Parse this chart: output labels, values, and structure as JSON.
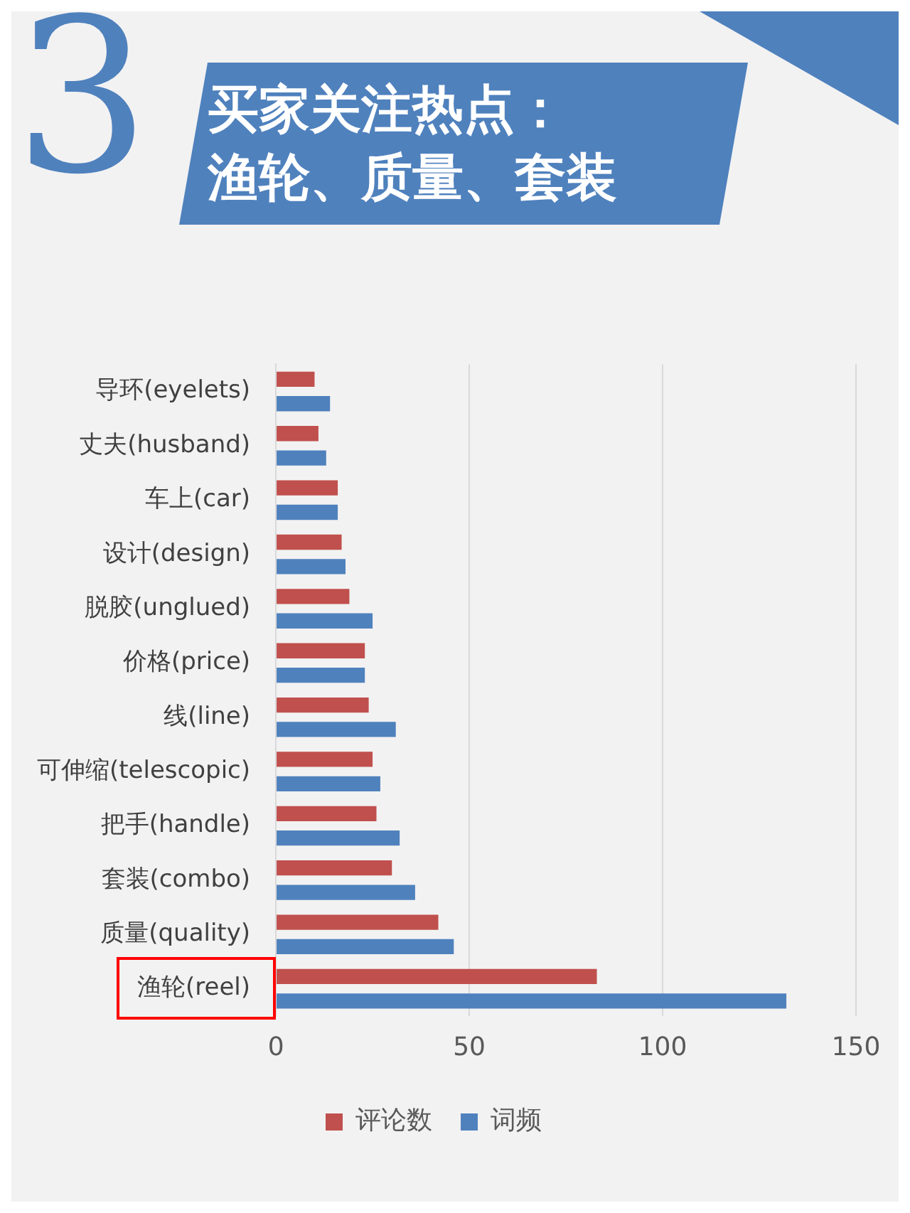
{
  "chart_data": {
    "type": "bar",
    "orientation": "horizontal",
    "title": "买家关注热点：",
    "subtitle": "渔轮、质量、套装",
    "annotations": [
      "3"
    ],
    "categories": [
      "导环(eyelets)",
      "丈夫(husband)",
      "车上(car)",
      "设计(design)",
      "脱胶(unglued)",
      "价格(price)",
      "线(line)",
      "可伸缩(telescopic)",
      "把手(handle)",
      "套装(combo)",
      "质量(quality)",
      "渔轮(reel)"
    ],
    "series": [
      {
        "name": "评论数",
        "color": "#c0504d",
        "values": [
          10,
          11,
          16,
          17,
          19,
          23,
          24,
          25,
          26,
          30,
          42,
          83
        ]
      },
      {
        "name": "词频",
        "color": "#4f81bd",
        "values": [
          14,
          13,
          16,
          18,
          25,
          23,
          31,
          27,
          32,
          36,
          46,
          132
        ]
      }
    ],
    "xlim": [
      0,
      150
    ],
    "xticks": [
      0,
      50,
      100,
      150
    ],
    "grid": "x",
    "legend": "bottom"
  }
}
